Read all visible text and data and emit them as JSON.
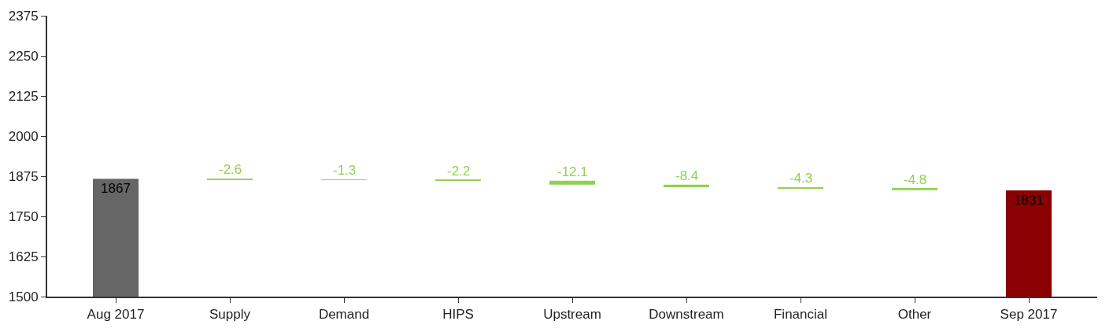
{
  "chart_data": {
    "type": "bar",
    "categories": [
      "Aug 2017",
      "Supply",
      "Demand",
      "HIPS",
      "Upstream",
      "Downstream",
      "Financial",
      "Other",
      "Sep 2017"
    ],
    "values": [
      1867,
      -2.6,
      -1.3,
      -2.2,
      -12.1,
      -8.4,
      -4.3,
      -4.8,
      1831
    ],
    "base": [
      null,
      1867,
      1864.4,
      1863.1,
      1860.9,
      1848.8,
      1840.4,
      1836.1,
      null
    ],
    "colors": [
      "#666666",
      "#92d050",
      "#92d050",
      "#92d050",
      "#92d050",
      "#92d050",
      "#92d050",
      "#92d050",
      "#8b0000"
    ],
    "data_labels": true,
    "ylim": [
      1500,
      2375
    ],
    "yticks": [
      1500,
      1625,
      1750,
      1875,
      2000,
      2125,
      2250,
      2375
    ]
  }
}
